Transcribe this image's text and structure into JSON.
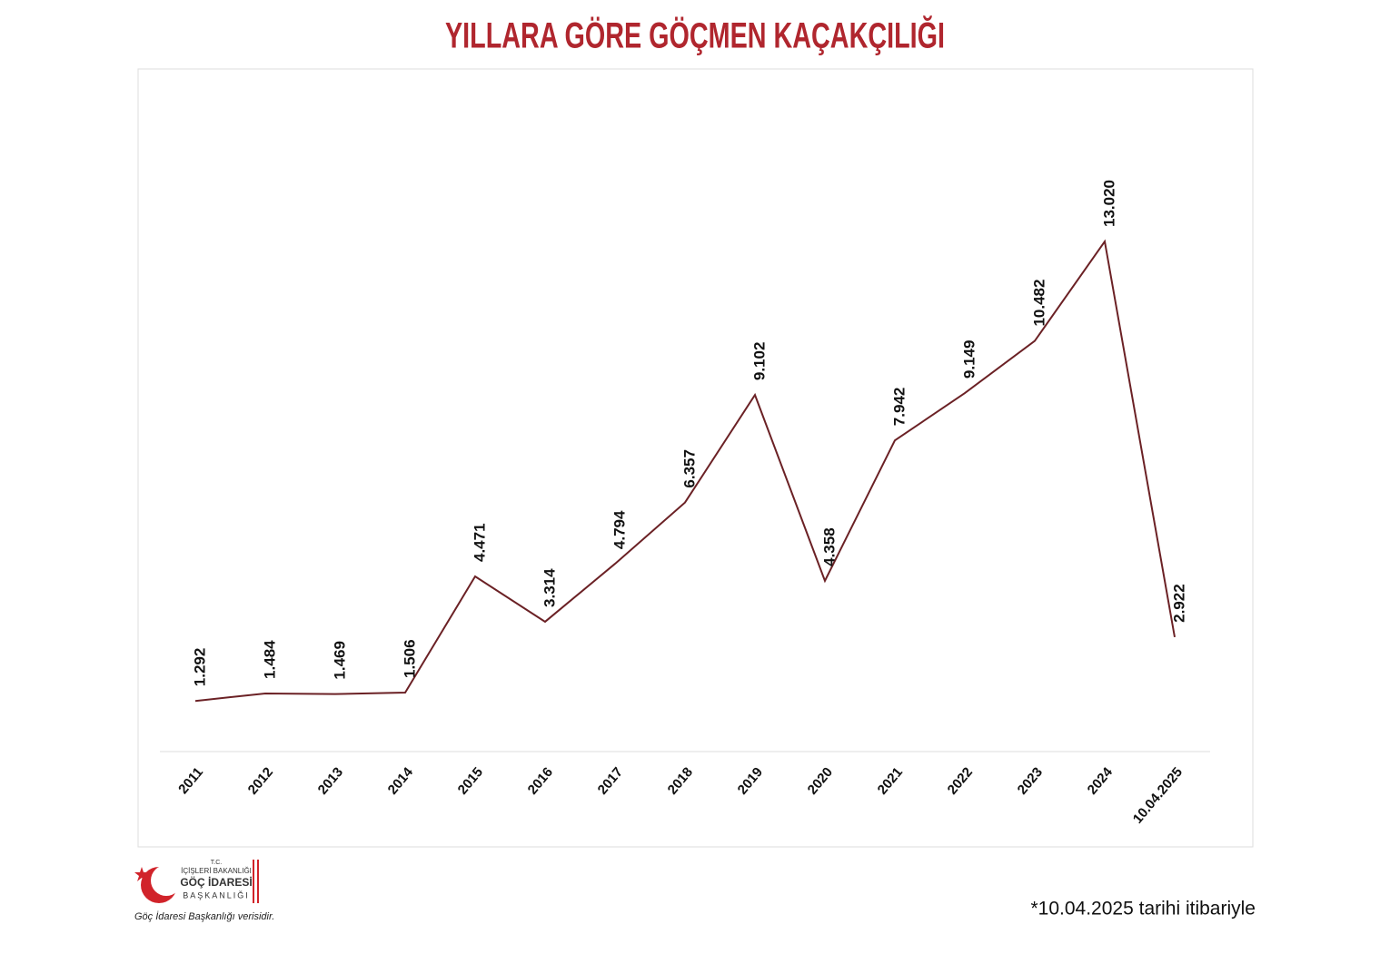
{
  "chart_data": {
    "type": "line",
    "title": "YILLARA GÖRE GÖÇMEN KAÇAKÇILIĞI",
    "categories": [
      "2011",
      "2012",
      "2013",
      "2014",
      "2015",
      "2016",
      "2017",
      "2018",
      "2019",
      "2020",
      "2021",
      "2022",
      "2023",
      "2024",
      "10.04.2025"
    ],
    "values": [
      1292,
      1484,
      1469,
      1506,
      4471,
      3314,
      4794,
      6357,
      9102,
      4358,
      7942,
      9149,
      10482,
      13020,
      2922
    ],
    "value_labels": [
      "1.292",
      "1.484",
      "1.469",
      "1.506",
      "4.471",
      "3.314",
      "4.794",
      "6.357",
      "9.102",
      "4.358",
      "7.942",
      "9.149",
      "10.482",
      "13.020",
      "2.922"
    ],
    "color": "#6b2125"
  },
  "footnote": "*10.04.2025 tarihi itibariyle",
  "logo": {
    "line1": "T.C.",
    "line2": "İÇİŞLERİ BAKANLIĞI",
    "line3": "GÖÇ İDARESİ",
    "line4": "BAŞKANLIĞI"
  },
  "source": "Göç İdaresi Başkanlığı verisidir."
}
